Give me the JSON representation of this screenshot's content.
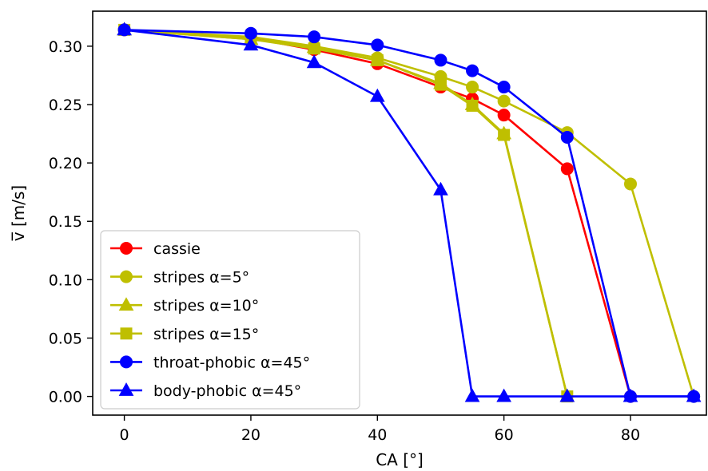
{
  "chart_data": {
    "type": "line",
    "title": "",
    "xlabel": "CA [°]",
    "ylabel": "v̅ [m/s]",
    "xlim": [
      -5,
      92
    ],
    "ylim": [
      -0.016,
      0.33
    ],
    "x_ticks": [
      0,
      20,
      40,
      60,
      80
    ],
    "y_ticks": [
      0.0,
      0.05,
      0.1,
      0.15,
      0.2,
      0.25,
      0.3
    ],
    "y_tick_labels": [
      "0.00",
      "0.05",
      "0.10",
      "0.15",
      "0.20",
      "0.25",
      "0.30"
    ],
    "x_tick_labels": [
      "0",
      "20",
      "40",
      "60",
      "80"
    ],
    "grid": false,
    "legend_position": "lower-left",
    "series": [
      {
        "name": "cassie",
        "color": "#ff0000",
        "marker": "circle",
        "x": [
          0,
          20,
          30,
          40,
          50,
          55,
          60,
          70,
          80
        ],
        "y": [
          0.314,
          0.307,
          0.297,
          0.285,
          0.265,
          0.255,
          0.241,
          0.195,
          0.0
        ]
      },
      {
        "name": "stripes α=5°",
        "color": "#bfbf00",
        "marker": "circle",
        "x": [
          0,
          20,
          30,
          40,
          50,
          55,
          60,
          70,
          80,
          90
        ],
        "y": [
          0.314,
          0.308,
          0.3,
          0.29,
          0.274,
          0.265,
          0.253,
          0.226,
          0.182,
          0.0
        ]
      },
      {
        "name": "stripes α=10°",
        "color": "#bfbf00",
        "marker": "triangle",
        "x": [
          0,
          20,
          30,
          40,
          50,
          55,
          60,
          70
        ],
        "y": [
          0.314,
          0.306,
          0.299,
          0.288,
          0.268,
          0.25,
          0.225,
          0.0
        ]
      },
      {
        "name": "stripes α=15°",
        "color": "#bfbf00",
        "marker": "square",
        "x": [
          0,
          20,
          30,
          40,
          50,
          55,
          60,
          70
        ],
        "y": [
          0.314,
          0.306,
          0.298,
          0.288,
          0.267,
          0.249,
          0.224,
          0.0
        ]
      },
      {
        "name": "throat-phobic α=45°",
        "color": "#0000ff",
        "marker": "circle",
        "x": [
          0,
          20,
          30,
          40,
          50,
          55,
          60,
          70,
          80,
          90
        ],
        "y": [
          0.314,
          0.311,
          0.308,
          0.301,
          0.288,
          0.279,
          0.265,
          0.222,
          0.0,
          0.0
        ]
      },
      {
        "name": "body-phobic α=45°",
        "color": "#0000ff",
        "marker": "triangle",
        "x": [
          0,
          20,
          30,
          40,
          50,
          55,
          60,
          70,
          80,
          90
        ],
        "y": [
          0.314,
          0.301,
          0.286,
          0.257,
          0.177,
          0.0,
          0.0,
          0.0,
          0.0,
          0.0
        ]
      }
    ]
  }
}
